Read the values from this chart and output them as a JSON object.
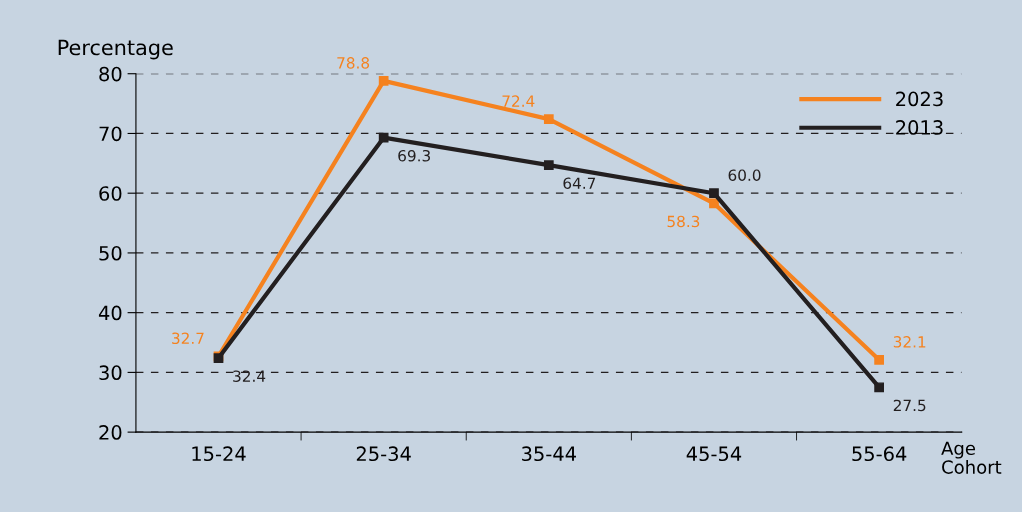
{
  "chart_data": {
    "type": "line",
    "xlabel": "Age Cohort",
    "ylabel": "Percentage",
    "categories": [
      "15-24",
      "25-34",
      "35-44",
      "45-54",
      "55-64"
    ],
    "series": [
      {
        "name": "2023",
        "color": "#f5821f",
        "values": [
          32.7,
          78.8,
          72.4,
          58.3,
          32.1
        ],
        "value_labels": [
          "32.7",
          "78.8",
          "72.4",
          "58.3",
          "32.1"
        ]
      },
      {
        "name": "2013",
        "color": "#231f20",
        "values": [
          32.4,
          69.3,
          64.7,
          60.0,
          27.5
        ],
        "value_labels": [
          "32.4",
          "69.3",
          "64.7",
          "60.0",
          "27.5"
        ]
      }
    ],
    "ylim": [
      20,
      80
    ],
    "yticks": [
      20,
      30,
      40,
      50,
      60,
      70,
      80
    ],
    "grid": "y",
    "legend": "top right",
    "marker": "square",
    "line_style": "solid"
  }
}
